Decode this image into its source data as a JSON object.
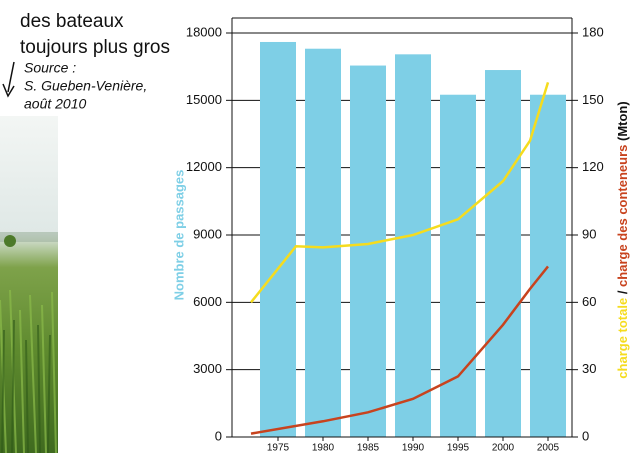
{
  "caption": {
    "lines": [
      "des bateaux",
      "toujours plus gros"
    ],
    "source_label": "Source :",
    "source": [
      "S. Gueben-Venière,",
      "août 2010"
    ]
  },
  "chart_data": {
    "type": "bar",
    "categories": [
      "1975",
      "1980",
      "1985",
      "1990",
      "1995",
      "2000",
      "2005"
    ],
    "category_years": [
      1975,
      1980,
      1985,
      1990,
      1995,
      2000,
      2005
    ],
    "series": [
      {
        "type": "bar",
        "color": "#7ecfe6",
        "values": [
          17600,
          17300,
          16550,
          17050,
          15250,
          16350,
          15250
        ]
      },
      {
        "type": "line",
        "axis": "y2",
        "color": "#f5dc1e",
        "x": [
          1972,
          1977,
          1980,
          1985,
          1990,
          1995,
          2000,
          2003,
          2005
        ],
        "values": [
          60,
          85,
          84.5,
          86,
          90,
          97,
          114,
          132,
          158
        ]
      },
      {
        "type": "line",
        "axis": "y2",
        "color": "#c8431e",
        "x": [
          1972,
          1980,
          1985,
          1990,
          1995,
          2000,
          2003,
          2005
        ],
        "values": [
          1.5,
          7,
          11,
          17,
          27,
          50,
          66,
          76
        ]
      }
    ],
    "ylim": [
      0,
      18000
    ],
    "yticks": [
      0,
      3000,
      6000,
      9000,
      12000,
      15000,
      18000
    ],
    "y2lim": [
      0,
      180
    ],
    "y2ticks": [
      0,
      30,
      60,
      90,
      120,
      150,
      180
    ],
    "y_label": "Nombre de passages",
    "y2_label": [
      {
        "text": "charge totale",
        "color": "#f5dc1e"
      },
      {
        "text": " / ",
        "color": "#111111"
      },
      {
        "text": "charge des conteneurs",
        "color": "#c8431e"
      },
      {
        "text": " (Mton)",
        "color": "#111111"
      }
    ],
    "grid": true
  }
}
